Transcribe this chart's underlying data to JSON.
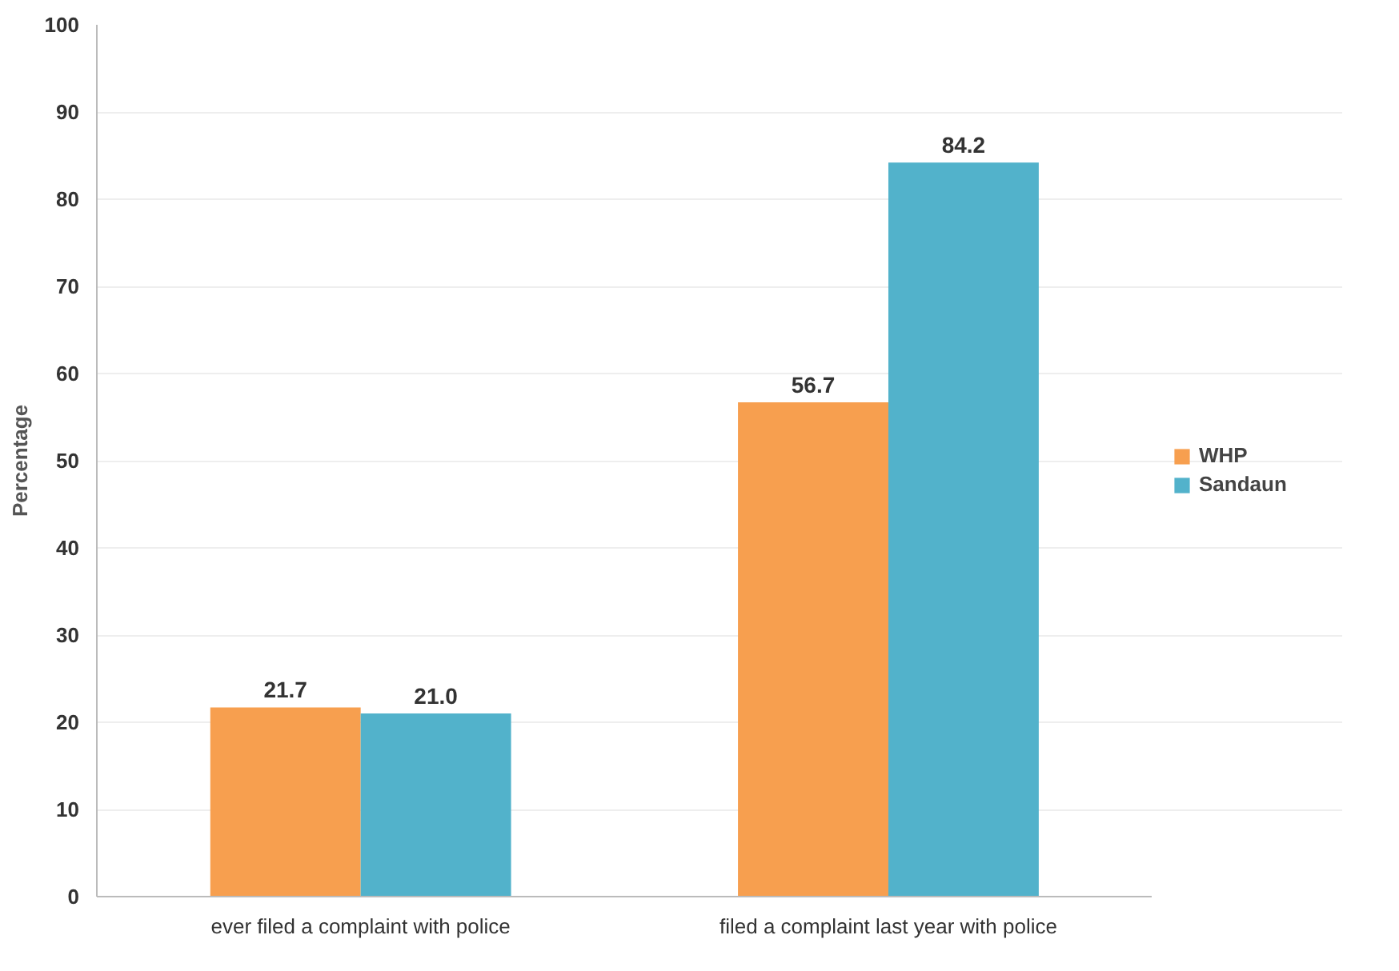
{
  "chart_data": {
    "type": "bar",
    "ylabel": "Percentage",
    "categories": [
      "ever filed a complaint with police",
      "filed a complaint last year with police"
    ],
    "series": [
      {
        "name": "WHP",
        "color": "#f79f4f",
        "values": [
          21.7,
          56.7
        ],
        "value_labels": [
          "21.7",
          "56.7"
        ]
      },
      {
        "name": "Sandaun",
        "color": "#52b2cb",
        "values": [
          21.0,
          84.2
        ],
        "value_labels": [
          "21.0",
          "84.2"
        ]
      }
    ],
    "ylim": [
      0,
      100
    ],
    "yticks": [
      0,
      10,
      20,
      30,
      40,
      50,
      60,
      70,
      80,
      90,
      100
    ],
    "grid": "y",
    "legend": "right"
  }
}
